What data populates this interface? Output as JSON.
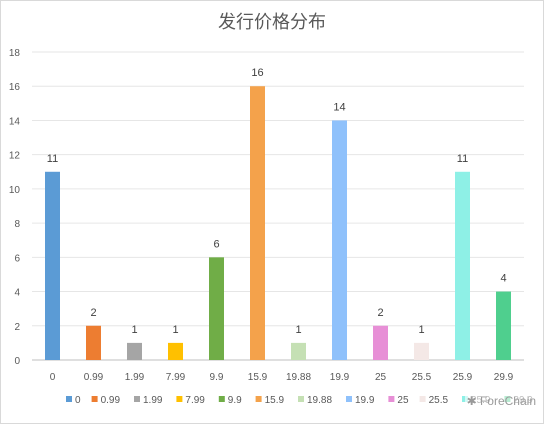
{
  "chart_data": {
    "type": "bar",
    "title": "发行价格分布",
    "categories": [
      "0",
      "0.99",
      "1.99",
      "7.99",
      "9.9",
      "15.9",
      "19.88",
      "19.9",
      "25",
      "25.5",
      "25.9",
      "29.9"
    ],
    "values": [
      11,
      2,
      1,
      1,
      6,
      16,
      1,
      14,
      2,
      1,
      11,
      4
    ],
    "colors": [
      "#5b9bd5",
      "#ed7d31",
      "#a5a5a5",
      "#ffc000",
      "#70ad47",
      "#f4a24b",
      "#c5e0b4",
      "#8fc1fb",
      "#e78fd6",
      "#f4e8e6",
      "#8ef0e6",
      "#4fcf8e"
    ],
    "ylim": [
      0,
      18
    ],
    "yticks": [
      0,
      2,
      4,
      6,
      8,
      10,
      12,
      14,
      16,
      18
    ],
    "xlabel": "",
    "ylabel": "",
    "grid": true,
    "legend_position": "bottom",
    "legend_entries": [
      "0",
      "0.99",
      "1.99",
      "7.99",
      "9.9",
      "15.9",
      "19.88",
      "19.9",
      "25",
      "25.5",
      "25.9",
      "29.9"
    ]
  },
  "watermark": "ForeChain"
}
